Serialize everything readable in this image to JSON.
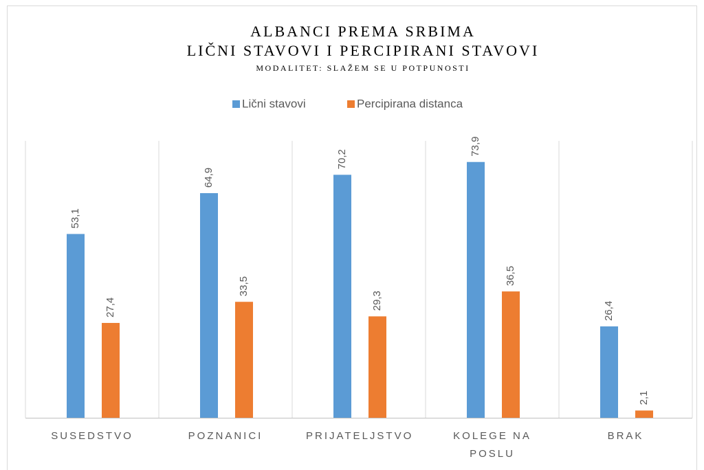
{
  "chart_data": {
    "type": "bar",
    "title": "ALBANCI PREMA SRBIMA",
    "subtitle": "LIČNI STAVOVI I PERCIPIRANI STAVOVI",
    "annotation": "MODALITET: SLAŽEM SE U POTPUNOSTI",
    "categories": [
      "SUSEDSTVO",
      "POZNANICI",
      "PRIJATELJSTVO",
      "KOLEGE NA POSLU",
      "BRAK"
    ],
    "series": [
      {
        "name": "Lični stavovi",
        "color": "#5b9bd5",
        "values": [
          53.1,
          64.9,
          70.2,
          73.9,
          26.4
        ],
        "value_labels": [
          "53,1",
          "64,9",
          "70,2",
          "73,9",
          "26,4"
        ]
      },
      {
        "name": "Percipirana distanca",
        "color": "#ed7d31",
        "values": [
          27.4,
          33.5,
          29.3,
          36.5,
          2.1
        ],
        "value_labels": [
          "27,4",
          "33,5",
          "29,3",
          "36,5",
          "2,1"
        ]
      }
    ],
    "ylim": [
      0,
      80
    ],
    "legend": "top"
  }
}
